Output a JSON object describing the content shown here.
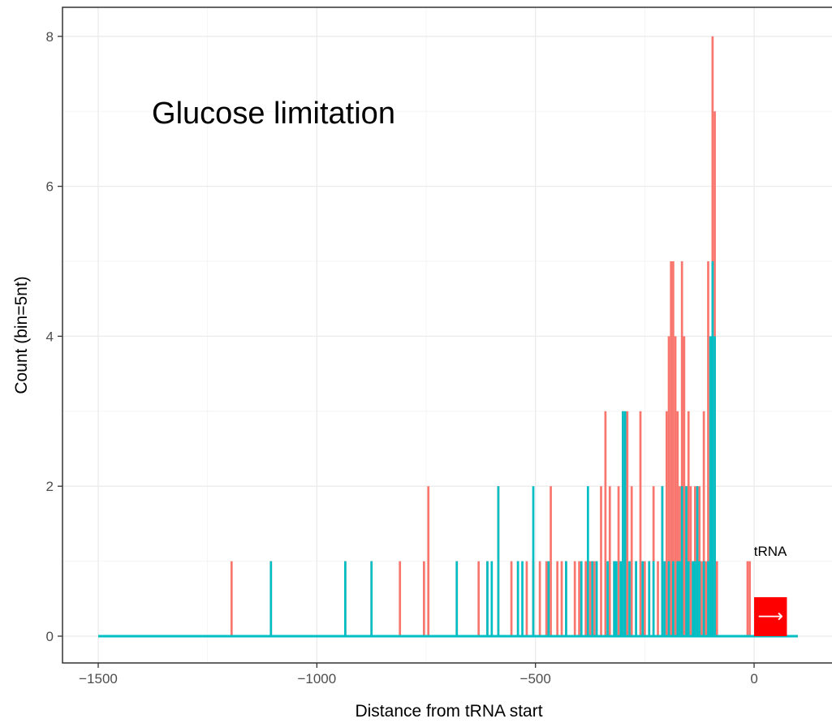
{
  "chart_data": {
    "type": "bar",
    "title": "",
    "annotation": "Glucose limitation",
    "xlabel": "Distance from tRNA start",
    "ylabel": "Count (bin=5nt)",
    "xlim": [
      -1500,
      100
    ],
    "ylim": [
      0,
      8
    ],
    "x_ticks": [
      -1500,
      -1000,
      -500,
      0
    ],
    "x_tick_labels": [
      "−1500",
      "−1000",
      "−500",
      "0"
    ],
    "y_ticks": [
      0,
      2,
      4,
      6,
      8
    ],
    "y_tick_labels": [
      "0",
      "2",
      "4",
      "6",
      "8"
    ],
    "grid": true,
    "legend": "none",
    "bin_width": 5,
    "series": [
      {
        "color": "#F8766D",
        "bins": [
          [
            -1195,
            1
          ],
          [
            -1105,
            1
          ],
          [
            -935,
            1
          ],
          [
            -875,
            1
          ],
          [
            -810,
            1
          ],
          [
            -755,
            1
          ],
          [
            -745,
            2
          ],
          [
            -680,
            1
          ],
          [
            -630,
            1
          ],
          [
            -610,
            1
          ],
          [
            -585,
            2
          ],
          [
            -555,
            1
          ],
          [
            -540,
            1
          ],
          [
            -520,
            1
          ],
          [
            -505,
            1
          ],
          [
            -490,
            1
          ],
          [
            -475,
            1
          ],
          [
            -465,
            2
          ],
          [
            -450,
            1
          ],
          [
            -440,
            1
          ],
          [
            -430,
            1
          ],
          [
            -410,
            1
          ],
          [
            -400,
            1
          ],
          [
            -385,
            1
          ],
          [
            -375,
            1
          ],
          [
            -365,
            1
          ],
          [
            -350,
            2
          ],
          [
            -340,
            3
          ],
          [
            -330,
            2
          ],
          [
            -320,
            1
          ],
          [
            -310,
            2
          ],
          [
            -300,
            3
          ],
          [
            -290,
            3
          ],
          [
            -280,
            2
          ],
          [
            -270,
            1
          ],
          [
            -260,
            3
          ],
          [
            -250,
            1
          ],
          [
            -240,
            1
          ],
          [
            -230,
            2
          ],
          [
            -220,
            1
          ],
          [
            -210,
            2
          ],
          [
            -200,
            3
          ],
          [
            -195,
            4
          ],
          [
            -190,
            5
          ],
          [
            -185,
            5
          ],
          [
            -180,
            4
          ],
          [
            -175,
            3
          ],
          [
            -170,
            2
          ],
          [
            -165,
            5
          ],
          [
            -160,
            4
          ],
          [
            -155,
            2
          ],
          [
            -150,
            3
          ],
          [
            -145,
            2
          ],
          [
            -140,
            1
          ],
          [
            -135,
            2
          ],
          [
            -130,
            2
          ],
          [
            -125,
            2
          ],
          [
            -120,
            1
          ],
          [
            -115,
            3
          ],
          [
            -110,
            1
          ],
          [
            -105,
            5
          ],
          [
            -100,
            2
          ],
          [
            -95,
            8
          ],
          [
            -90,
            7
          ],
          [
            -85,
            1
          ],
          [
            -15,
            1
          ],
          [
            -10,
            1
          ]
        ]
      },
      {
        "color": "#00BFC4",
        "bins": [
          [
            -1105,
            1
          ],
          [
            -935,
            1
          ],
          [
            -875,
            1
          ],
          [
            -680,
            1
          ],
          [
            -610,
            1
          ],
          [
            -600,
            1
          ],
          [
            -585,
            2
          ],
          [
            -540,
            1
          ],
          [
            -530,
            1
          ],
          [
            -505,
            2
          ],
          [
            -470,
            1
          ],
          [
            -430,
            1
          ],
          [
            -395,
            1
          ],
          [
            -380,
            2
          ],
          [
            -370,
            1
          ],
          [
            -360,
            1
          ],
          [
            -335,
            1
          ],
          [
            -320,
            1
          ],
          [
            -315,
            1
          ],
          [
            -305,
            1
          ],
          [
            -300,
            3
          ],
          [
            -295,
            3
          ],
          [
            -285,
            1
          ],
          [
            -270,
            1
          ],
          [
            -255,
            1
          ],
          [
            -240,
            1
          ],
          [
            -230,
            1
          ],
          [
            -210,
            2
          ],
          [
            -205,
            1
          ],
          [
            -195,
            1
          ],
          [
            -185,
            1
          ],
          [
            -175,
            1
          ],
          [
            -170,
            1
          ],
          [
            -165,
            2
          ],
          [
            -155,
            2
          ],
          [
            -150,
            1
          ],
          [
            -140,
            1
          ],
          [
            -135,
            1
          ],
          [
            -130,
            2
          ],
          [
            -125,
            1
          ],
          [
            -115,
            1
          ],
          [
            -105,
            1
          ],
          [
            -100,
            4
          ],
          [
            -95,
            5
          ],
          [
            -90,
            4
          ]
        ]
      }
    ],
    "baseline_range": [
      -1500,
      100
    ],
    "gene": {
      "label": "tRNA",
      "start": 0,
      "end": 75,
      "color": "#FF0000",
      "arrow": "⟶",
      "arrow_color": "#FFFFFF"
    }
  }
}
